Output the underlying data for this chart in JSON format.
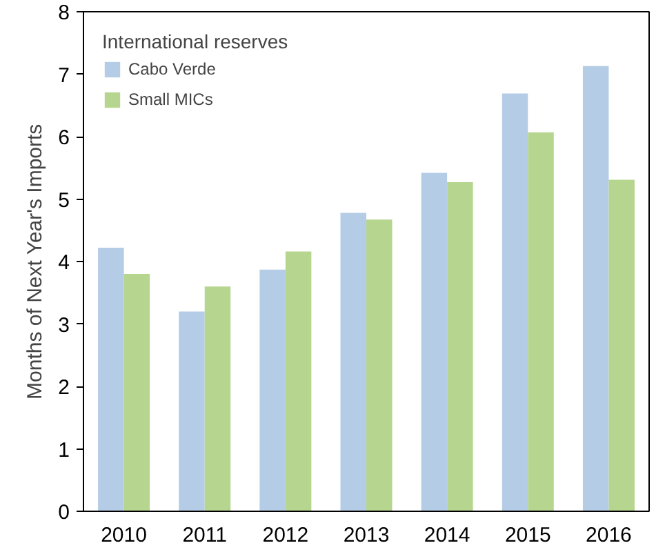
{
  "chart_data": {
    "type": "bar",
    "ylabel": "Months of Next Year's Imports",
    "legend_title": "International reserves",
    "categories": [
      "2010",
      "2011",
      "2012",
      "2013",
      "2014",
      "2015",
      "2016"
    ],
    "series": [
      {
        "name": "Cabo Verde",
        "color": "#b4cce6",
        "values": [
          4.22,
          3.2,
          3.87,
          4.78,
          5.42,
          6.69,
          7.13
        ]
      },
      {
        "name": "Small MICs",
        "color": "#b6d58f",
        "values": [
          3.8,
          3.6,
          4.16,
          4.67,
          5.27,
          6.07,
          5.31
        ]
      }
    ],
    "ylim": [
      0,
      8
    ],
    "yticks": [
      0,
      1,
      2,
      3,
      4,
      5,
      6,
      7,
      8
    ],
    "grid": false,
    "legend": "top left"
  }
}
